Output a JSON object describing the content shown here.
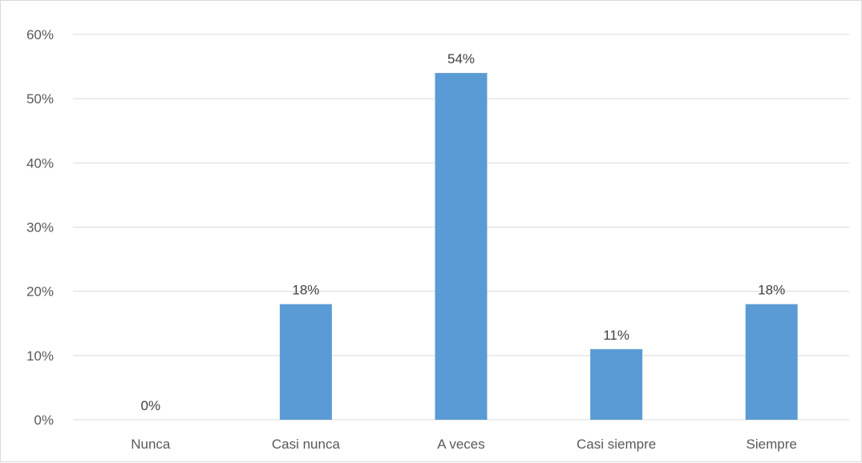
{
  "chart_data": {
    "type": "bar",
    "title": "",
    "xlabel": "",
    "ylabel": "",
    "categories": [
      "Nunca",
      "Casi nunca",
      "A veces",
      "Casi siempre",
      "Siempre"
    ],
    "values": [
      0,
      18,
      54,
      11,
      18
    ],
    "data_labels": [
      "0%",
      "18%",
      "54%",
      "11%",
      "18%"
    ],
    "ylim": [
      0,
      60
    ],
    "yticks": [
      0,
      10,
      20,
      30,
      40,
      50,
      60
    ],
    "ytick_labels": [
      "0%",
      "10%",
      "20%",
      "30%",
      "40%",
      "50%",
      "60%"
    ],
    "grid": true,
    "legend": "none",
    "bar_color": "#5b9bd5",
    "gridline_color": "#d9d9d9"
  }
}
